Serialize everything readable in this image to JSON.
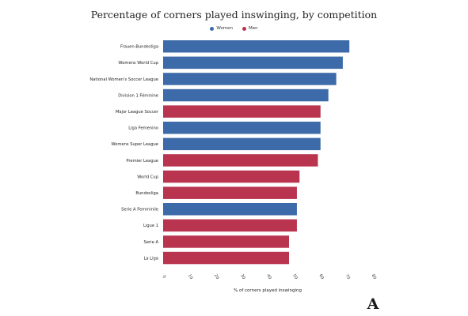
{
  "chart_data": {
    "type": "bar",
    "orientation": "horizontal",
    "title": "Percentage of corners played inswinging, by competition",
    "xlabel": "% of corners played inswinging",
    "ylabel": "",
    "xlim": [
      0,
      80
    ],
    "xticks": [
      "0",
      "10",
      "20",
      "30",
      "40",
      "50",
      "60",
      "70",
      "80"
    ],
    "grid": false,
    "legend_position": "top",
    "series": [
      {
        "name": "Women",
        "color": "#3d6aa8"
      },
      {
        "name": "Men",
        "color": "#b8344f"
      }
    ],
    "categories": [
      "Frauen-Bundesliga",
      "Womens World Cup",
      "National Women's Soccer League",
      "Division 1 Féminine",
      "Major League Soccer",
      "Liga Femenino",
      "Womens Super League",
      "Premier League",
      "World Cup",
      "Bundesliga",
      "Serie A Femminile",
      "Ligue 1",
      "Serie A",
      "La Liga"
    ],
    "values": [
      71,
      68.5,
      66,
      63,
      60,
      60,
      60,
      59,
      52,
      51,
      51,
      51,
      48,
      48
    ],
    "groups": [
      "Women",
      "Women",
      "Women",
      "Women",
      "Men",
      "Women",
      "Women",
      "Men",
      "Men",
      "Men",
      "Women",
      "Men",
      "Men",
      "Men"
    ]
  },
  "logo": {
    "name": "the-athletic-logo",
    "text": "A"
  }
}
